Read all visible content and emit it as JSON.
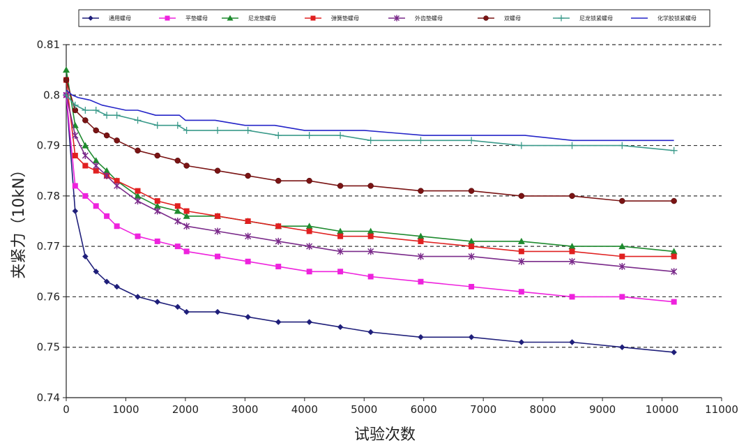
{
  "chart_data": {
    "type": "line",
    "title": "",
    "xlabel": "试验次数",
    "ylabel": "夹紧力（10kN）",
    "xlim": [
      0,
      11000
    ],
    "ylim": [
      0.74,
      0.81
    ],
    "xticks": [
      0,
      1000,
      2000,
      3000,
      4000,
      5000,
      6000,
      7000,
      8000,
      9000,
      10000,
      11000
    ],
    "yticks": [
      0.74,
      0.75,
      0.76,
      0.77,
      0.78,
      0.79,
      0.8,
      0.81
    ],
    "ytick_labels": [
      "0.74",
      "0.75",
      "0.76",
      "0.77",
      "0.78",
      "0.79",
      "0.8",
      "0.81"
    ],
    "grid": "horizontal-dashed",
    "legend_position": "top",
    "series": [
      {
        "name": "通用螺母",
        "color": "#1f1f7a",
        "marker": "diamond",
        "x": [
          0,
          150,
          320,
          500,
          680,
          850,
          1200,
          1530,
          1870,
          2020,
          2540,
          3050,
          3560,
          4080,
          4600,
          5110,
          5950,
          6800,
          7640,
          8490,
          9330,
          10200
        ],
        "y": [
          0.8,
          0.777,
          0.768,
          0.765,
          0.763,
          0.762,
          0.76,
          0.759,
          0.758,
          0.757,
          0.757,
          0.756,
          0.755,
          0.755,
          0.754,
          0.753,
          0.752,
          0.752,
          0.751,
          0.751,
          0.75,
          0.749
        ]
      },
      {
        "name": "平垫螺母",
        "color": "#ee22dd",
        "marker": "square",
        "x": [
          0,
          150,
          320,
          500,
          680,
          850,
          1200,
          1530,
          1870,
          2020,
          2540,
          3050,
          3560,
          4080,
          4600,
          5110,
          5950,
          6800,
          7640,
          8490,
          9330,
          10200
        ],
        "y": [
          0.8,
          0.782,
          0.78,
          0.778,
          0.776,
          0.774,
          0.772,
          0.771,
          0.77,
          0.769,
          0.768,
          0.767,
          0.766,
          0.765,
          0.765,
          0.764,
          0.763,
          0.762,
          0.761,
          0.76,
          0.76,
          0.759
        ]
      },
      {
        "name": "尼龙垫螺母",
        "color": "#1e8a2e",
        "marker": "triangle",
        "x": [
          0,
          150,
          320,
          500,
          680,
          850,
          1200,
          1530,
          1870,
          2020,
          2540,
          3050,
          3560,
          4080,
          4600,
          5110,
          5950,
          6800,
          7640,
          8490,
          9330,
          10200
        ],
        "y": [
          0.805,
          0.794,
          0.79,
          0.787,
          0.785,
          0.783,
          0.78,
          0.778,
          0.777,
          0.776,
          0.776,
          0.775,
          0.774,
          0.774,
          0.773,
          0.773,
          0.772,
          0.771,
          0.771,
          0.77,
          0.77,
          0.769
        ]
      },
      {
        "name": "弹簧垫螺母",
        "color": "#e02020",
        "marker": "square",
        "x": [
          0,
          150,
          320,
          500,
          680,
          850,
          1200,
          1530,
          1870,
          2020,
          2540,
          3050,
          3560,
          4080,
          4600,
          5110,
          5950,
          6800,
          7640,
          8490,
          9330,
          10200
        ],
        "y": [
          0.803,
          0.788,
          0.786,
          0.785,
          0.784,
          0.783,
          0.781,
          0.779,
          0.778,
          0.777,
          0.776,
          0.775,
          0.774,
          0.773,
          0.772,
          0.772,
          0.771,
          0.77,
          0.769,
          0.769,
          0.768,
          0.768
        ]
      },
      {
        "name": "外齿垫螺母",
        "color": "#7a2a8a",
        "marker": "asterisk",
        "x": [
          0,
          150,
          320,
          500,
          680,
          850,
          1200,
          1530,
          1870,
          2020,
          2540,
          3050,
          3560,
          4080,
          4600,
          5110,
          5950,
          6800,
          7640,
          8490,
          9330,
          10200
        ],
        "y": [
          0.8,
          0.792,
          0.788,
          0.786,
          0.784,
          0.782,
          0.779,
          0.777,
          0.775,
          0.774,
          0.773,
          0.772,
          0.771,
          0.77,
          0.769,
          0.769,
          0.768,
          0.768,
          0.767,
          0.767,
          0.766,
          0.765
        ]
      },
      {
        "name": "双螺母",
        "color": "#7a1414",
        "marker": "circle",
        "x": [
          0,
          150,
          320,
          500,
          680,
          850,
          1200,
          1530,
          1870,
          2020,
          2540,
          3050,
          3560,
          4080,
          4600,
          5110,
          5950,
          6800,
          7640,
          8490,
          9330,
          10200
        ],
        "y": [
          0.803,
          0.797,
          0.795,
          0.793,
          0.792,
          0.791,
          0.789,
          0.788,
          0.787,
          0.786,
          0.785,
          0.784,
          0.783,
          0.783,
          0.782,
          0.782,
          0.781,
          0.781,
          0.78,
          0.78,
          0.779,
          0.779
        ]
      },
      {
        "name": "尼龙锁紧螺母",
        "color": "#3a9a8a",
        "marker": "plus",
        "x": [
          0,
          150,
          320,
          500,
          680,
          850,
          1200,
          1530,
          1870,
          2020,
          2540,
          3050,
          3560,
          4080,
          4600,
          5110,
          5950,
          6800,
          7640,
          8490,
          9330,
          10200
        ],
        "y": [
          0.8,
          0.798,
          0.797,
          0.797,
          0.796,
          0.796,
          0.795,
          0.794,
          0.794,
          0.793,
          0.793,
          0.793,
          0.792,
          0.792,
          0.792,
          0.791,
          0.791,
          0.791,
          0.79,
          0.79,
          0.79,
          0.789
        ]
      },
      {
        "name": "化学胶锁紧螺母",
        "color": "#2424c8",
        "marker": "none",
        "x": [
          0,
          100,
          200,
          400,
          600,
          800,
          1000,
          1200,
          1500,
          1900,
          2000,
          2500,
          3000,
          3500,
          4000,
          4500,
          5000,
          5500,
          6000,
          7000,
          7700,
          8500,
          9300,
          10200
        ],
        "y": [
          0.801,
          0.8,
          0.7995,
          0.799,
          0.798,
          0.7975,
          0.797,
          0.797,
          0.796,
          0.796,
          0.795,
          0.795,
          0.794,
          0.794,
          0.793,
          0.793,
          0.793,
          0.7925,
          0.792,
          0.792,
          0.792,
          0.791,
          0.791,
          0.791
        ]
      }
    ]
  }
}
